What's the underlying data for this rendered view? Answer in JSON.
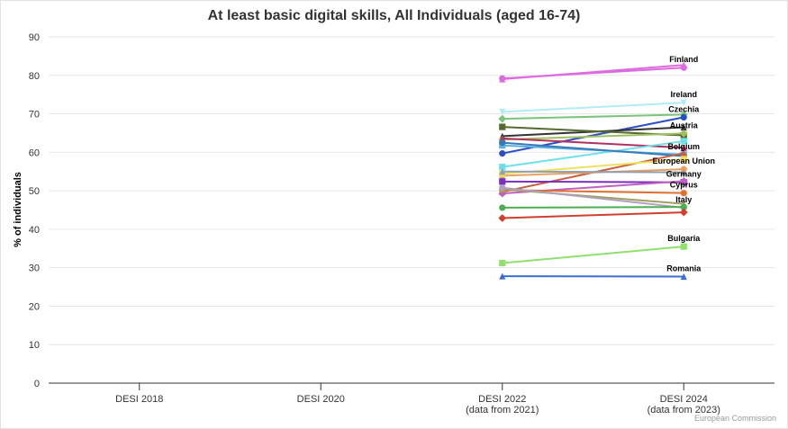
{
  "chart_data": {
    "type": "line",
    "title": "At least basic digital skills, All Individuals (aged 16-74)",
    "ylabel": "% of individuals",
    "xlabel": "",
    "ylim": [
      0,
      90
    ],
    "yticks": [
      0,
      10,
      20,
      30,
      40,
      50,
      60,
      70,
      80,
      90
    ],
    "categories": [
      {
        "line1": "DESI 2018",
        "line2": ""
      },
      {
        "line1": "DESI 2020",
        "line2": ""
      },
      {
        "line1": "DESI 2022",
        "line2": "(data from 2021)"
      },
      {
        "line1": "DESI 2024",
        "line2": "(data from 2023)"
      }
    ],
    "grid": true,
    "legend": "none",
    "series": [
      {
        "name": "Finland",
        "color": "#d86bdf",
        "marker": "circle",
        "values": [
          null,
          null,
          79.2,
          82.0
        ]
      },
      {
        "name": "",
        "color": "#df6bdf",
        "marker": "triangle",
        "values": [
          null,
          null,
          79.0,
          82.7
        ]
      },
      {
        "name": "Ireland",
        "color": "#b3ecf5",
        "marker": "triangle-down",
        "values": [
          null,
          null,
          70.5,
          72.9
        ]
      },
      {
        "name": "",
        "color": "#7cc47c",
        "marker": "diamond",
        "values": [
          null,
          null,
          68.7,
          69.8
        ]
      },
      {
        "name": "Czechia",
        "color": "#2b4fc4",
        "marker": "circle",
        "values": [
          null,
          null,
          59.7,
          69.1
        ]
      },
      {
        "name": "",
        "color": "#333333",
        "marker": "triangle",
        "values": [
          null,
          null,
          64.2,
          66.5
        ]
      },
      {
        "name": "",
        "color": "#556b2f",
        "marker": "square",
        "values": [
          null,
          null,
          66.6,
          64.4
        ]
      },
      {
        "name": "Austria",
        "color": "#a0c060",
        "marker": "diamond",
        "values": [
          null,
          null,
          63.3,
          64.9
        ]
      },
      {
        "name": "",
        "color": "#b03060",
        "marker": "triangle",
        "values": [
          null,
          null,
          63.6,
          61.2
        ]
      },
      {
        "name": "Belgium",
        "color": "#5ab0e0",
        "marker": "square",
        "values": [
          null,
          null,
          61.8,
          59.4
        ]
      },
      {
        "name": "",
        "color": "#6fe0e8",
        "marker": "square",
        "values": [
          null,
          null,
          56.2,
          62.9
        ]
      },
      {
        "name": "",
        "color": "#3a7ab8",
        "marker": "circle",
        "values": [
          null,
          null,
          62.5,
          59.0
        ]
      },
      {
        "name": "",
        "color": "#c86040",
        "marker": "triangle",
        "values": [
          null,
          null,
          49.7,
          59.8
        ]
      },
      {
        "name": "European Union",
        "color": "#e8a060",
        "marker": "circle",
        "values": [
          null,
          null,
          53.9,
          55.6
        ]
      },
      {
        "name": "",
        "color": "#f0e060",
        "marker": "square",
        "values": [
          null,
          null,
          54.4,
          58.2
        ]
      },
      {
        "name": "",
        "color": "#90a0b0",
        "marker": "triangle",
        "values": [
          null,
          null,
          55.0,
          54.8
        ]
      },
      {
        "name": "Germany",
        "color": "#7b2fbe",
        "marker": "square",
        "values": [
          null,
          null,
          52.4,
          52.2
        ]
      },
      {
        "name": "",
        "color": "#c060c0",
        "marker": "diamond",
        "values": [
          null,
          null,
          49.3,
          52.5
        ]
      },
      {
        "name": "Cyprus",
        "color": "#e07030",
        "marker": "circle",
        "values": [
          null,
          null,
          50.2,
          49.4
        ]
      },
      {
        "name": "",
        "color": "#a0a060",
        "marker": "triangle",
        "values": [
          null,
          null,
          50.4,
          46.6
        ]
      },
      {
        "name": "Italy",
        "color": "#b0a0c0",
        "marker": "circle",
        "values": [
          null,
          null,
          50.8,
          45.6
        ]
      },
      {
        "name": "",
        "color": "#4caf50",
        "marker": "circle",
        "values": [
          null,
          null,
          45.6,
          45.8
        ]
      },
      {
        "name": "",
        "color": "#d04030",
        "marker": "diamond",
        "values": [
          null,
          null,
          42.9,
          44.4
        ]
      },
      {
        "name": "Bulgaria",
        "color": "#90e070",
        "marker": "square",
        "values": [
          null,
          null,
          31.2,
          35.5
        ]
      },
      {
        "name": "Romania",
        "color": "#3a6fd0",
        "marker": "triangle",
        "values": [
          null,
          null,
          27.8,
          27.7
        ]
      }
    ],
    "annotations": {
      "credits": "European Commission"
    }
  }
}
